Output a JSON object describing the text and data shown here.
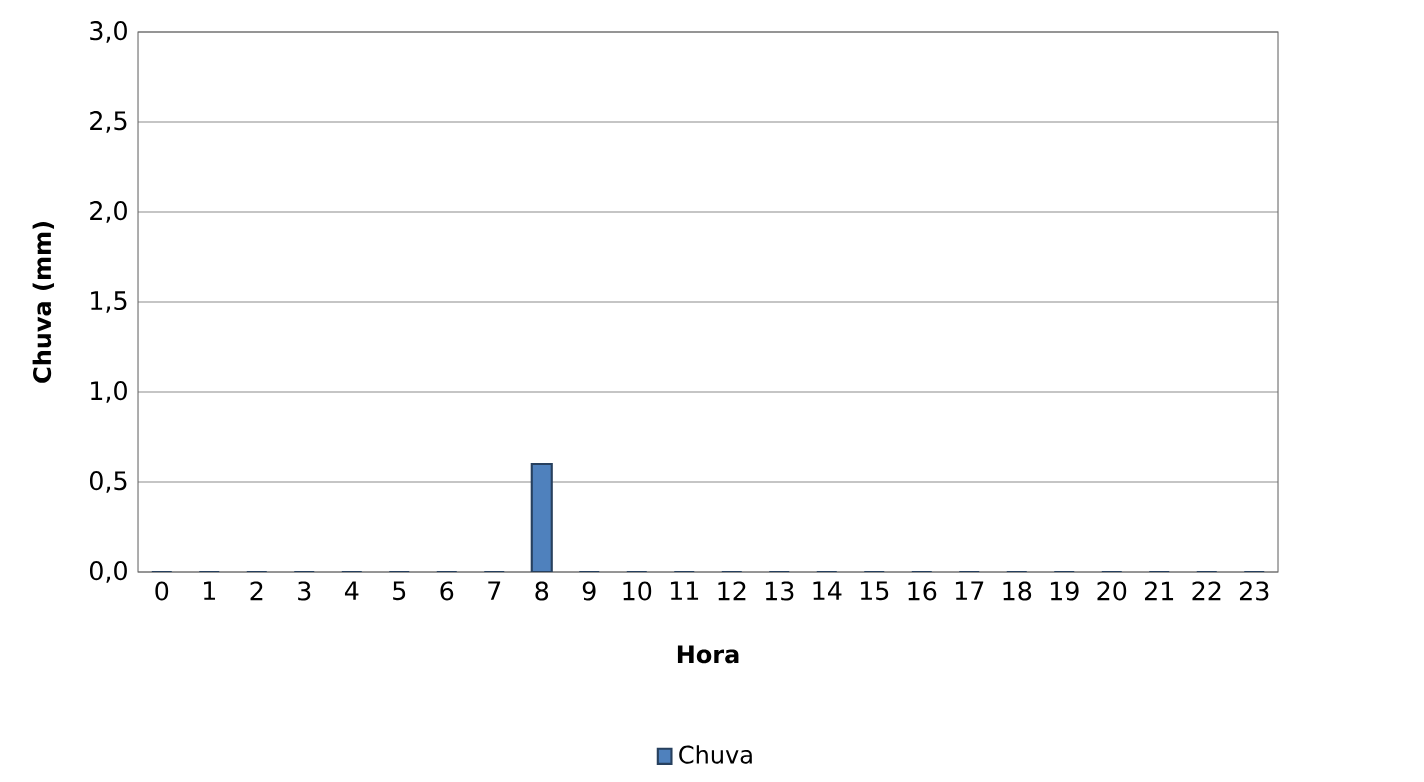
{
  "chart_data": {
    "type": "bar",
    "xlabel": "Hora",
    "ylabel": "Chuva (mm)",
    "categories": [
      "0",
      "1",
      "2",
      "3",
      "4",
      "5",
      "6",
      "7",
      "8",
      "9",
      "10",
      "11",
      "12",
      "13",
      "14",
      "15",
      "16",
      "17",
      "18",
      "19",
      "20",
      "21",
      "22",
      "23"
    ],
    "series": [
      {
        "name": "Chuva",
        "color": "#4f81bd",
        "values": [
          0,
          0,
          0,
          0,
          0,
          0,
          0,
          0,
          0.6,
          0,
          0,
          0,
          0,
          0,
          0,
          0,
          0,
          0,
          0,
          0,
          0,
          0,
          0,
          0
        ]
      }
    ],
    "ylim": [
      0,
      3
    ],
    "yticks": [
      {
        "value": 0,
        "label": "0,0"
      },
      {
        "value": 0.5,
        "label": "0,5"
      },
      {
        "value": 1,
        "label": "1,0"
      },
      {
        "value": 1.5,
        "label": "1,5"
      },
      {
        "value": 2,
        "label": "2,0"
      },
      {
        "value": 2.5,
        "label": "2,5"
      },
      {
        "value": 3,
        "label": "3,0"
      }
    ],
    "grid": "y",
    "legend": "bottom"
  }
}
